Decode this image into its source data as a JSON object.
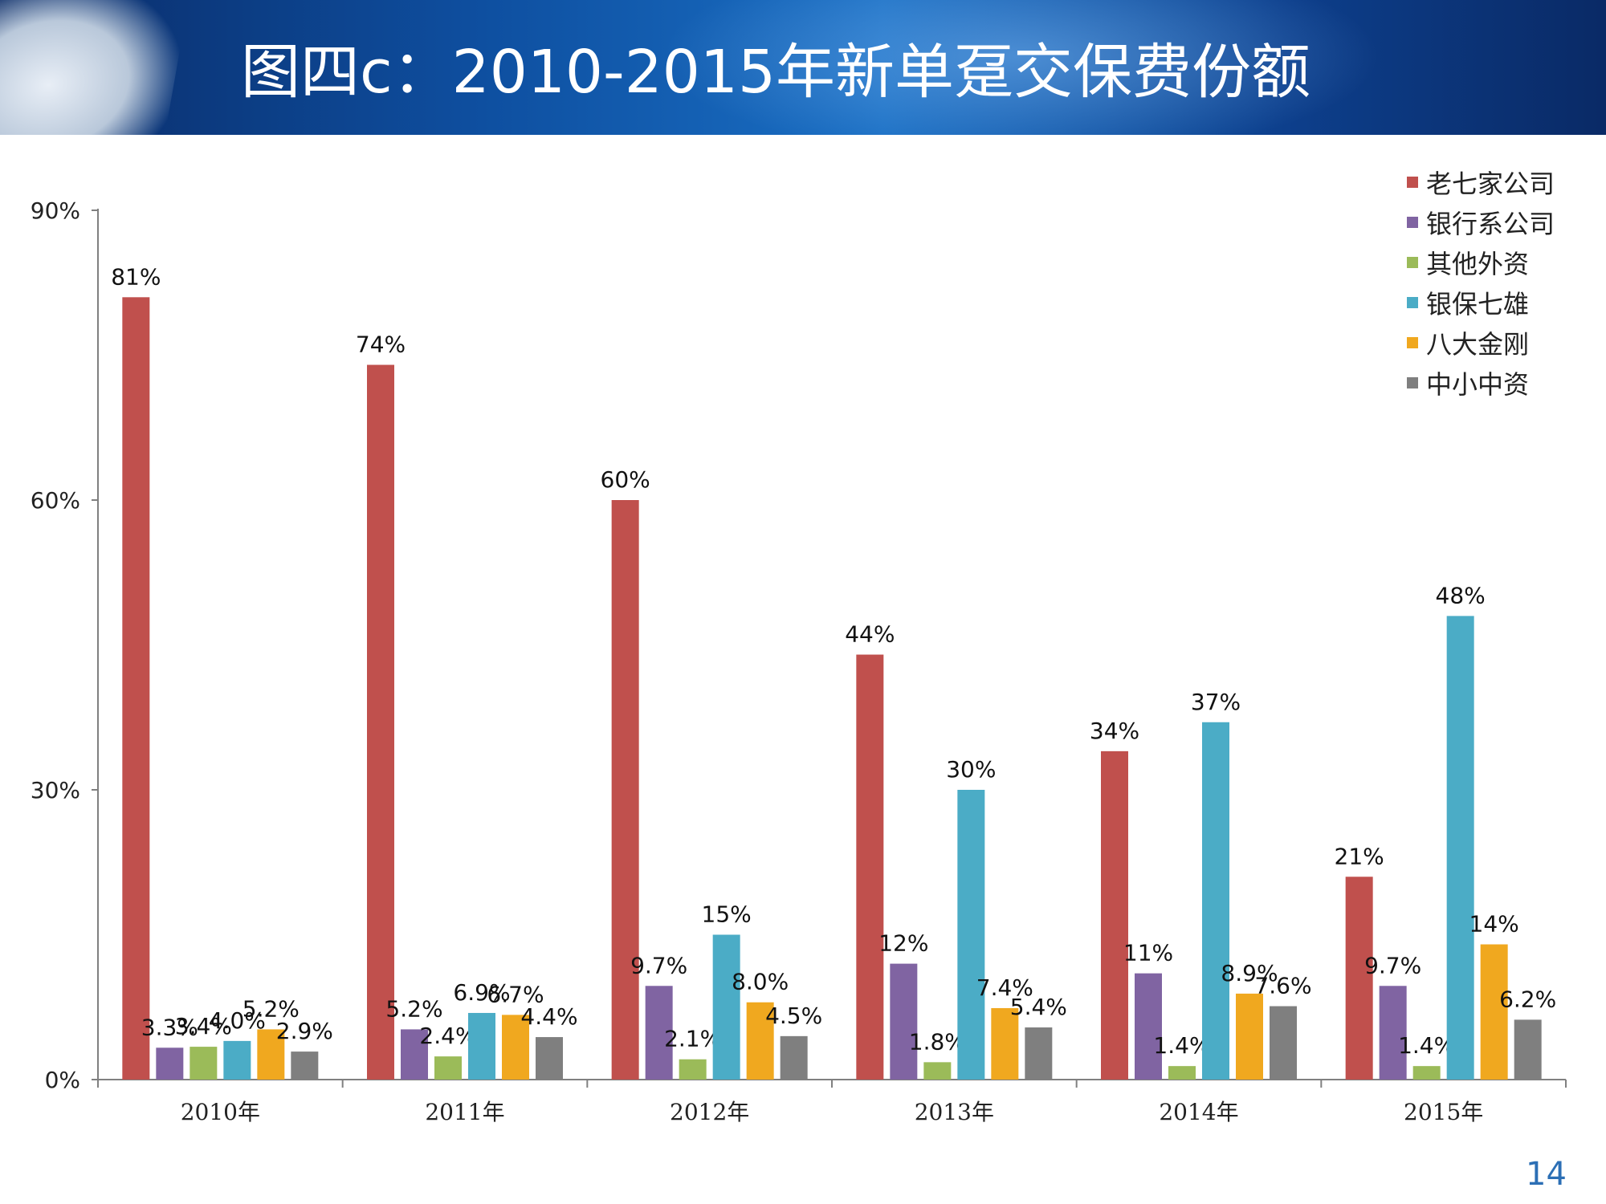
{
  "slide": {
    "title": "图四c：2010-2015年新单趸交保费份额",
    "page_number": "14"
  },
  "colors": {
    "banner": "#0e4fa0",
    "series": [
      "#c0504d",
      "#8064a2",
      "#9bbb59",
      "#4bacc6",
      "#f0a81f",
      "#7f7f7f"
    ]
  },
  "chart_data": {
    "type": "bar",
    "categories": [
      "2010年",
      "2011年",
      "2012年",
      "2013年",
      "2014年",
      "2015年"
    ],
    "ylim": [
      0,
      90
    ],
    "yticks": [
      0,
      30,
      60,
      90
    ],
    "ytick_labels": [
      "0%",
      "30%",
      "60%",
      "90%"
    ],
    "legend_position": "top-right",
    "grid": false,
    "series": [
      {
        "name": "老七家公司",
        "values": [
          81,
          74,
          60,
          44,
          34,
          21
        ],
        "labels": [
          "81%",
          "74%",
          "60%",
          "44%",
          "34%",
          "21%"
        ]
      },
      {
        "name": "银行系公司",
        "values": [
          3.3,
          5.2,
          9.7,
          12,
          11,
          9.7
        ],
        "labels": [
          "3.3%",
          "5.2%",
          "9.7%",
          "12%",
          "11%",
          "9.7%"
        ]
      },
      {
        "name": "其他外资",
        "values": [
          3.4,
          2.4,
          2.1,
          1.8,
          1.4,
          1.4
        ],
        "labels": [
          "3.4%",
          "2.4%",
          "2.1%",
          "1.8%",
          "1.4%",
          "1.4%"
        ]
      },
      {
        "name": "银保七雄",
        "values": [
          4.0,
          6.9,
          15,
          30,
          37,
          48
        ],
        "labels": [
          "4.0%",
          "6.9%",
          "15%",
          "30%",
          "37%",
          "48%"
        ]
      },
      {
        "name": "八大金刚",
        "values": [
          5.2,
          6.7,
          8.0,
          7.4,
          8.9,
          14
        ],
        "labels": [
          "5.2%",
          "6.7%",
          "8.0%",
          "7.4%",
          "8.9%",
          "14%"
        ]
      },
      {
        "name": "中小中资",
        "values": [
          2.9,
          4.4,
          4.5,
          5.4,
          7.6,
          6.2
        ],
        "labels": [
          "2.9%",
          "4.4%",
          "4.5%",
          "5.4%",
          "7.6%",
          "6.2%"
        ]
      }
    ]
  }
}
